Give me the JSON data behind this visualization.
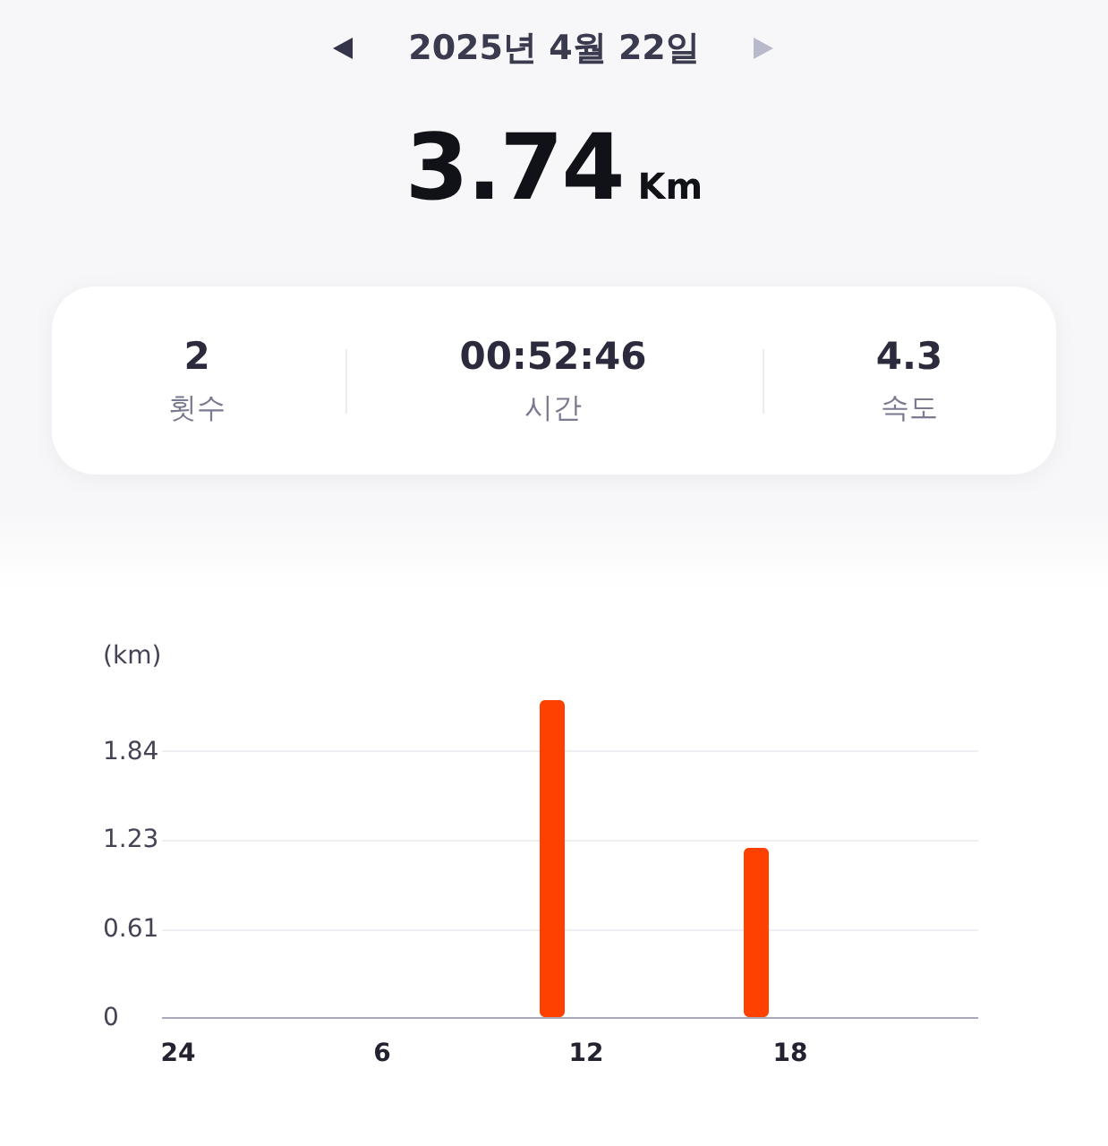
{
  "chart_data": {
    "type": "bar",
    "title": "2025년 4월 22일",
    "annotations": [
      "3.74",
      "Km",
      "2",
      "횟수",
      "00:52:46",
      "시간",
      "4.3",
      "속도"
    ],
    "ylabel": "(km)",
    "categories": [
      "24",
      null,
      null,
      null,
      null,
      null,
      "6",
      null,
      null,
      null,
      null,
      null,
      "12",
      null,
      null,
      null,
      null,
      null,
      "18",
      null,
      null,
      null,
      null,
      null
    ],
    "values": [
      null,
      null,
      null,
      null,
      null,
      null,
      null,
      null,
      null,
      null,
      null,
      2.19,
      null,
      null,
      null,
      null,
      null,
      1.17,
      null,
      null,
      null,
      null,
      null,
      null
    ],
    "color": "#ff4100",
    "ylim": [
      0,
      2.19
    ],
    "yticks": [
      0,
      0.61,
      1.23,
      1.84
    ],
    "grid": "y"
  }
}
